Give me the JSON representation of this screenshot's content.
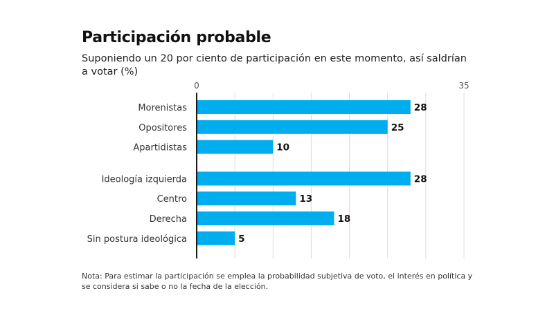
{
  "header": {
    "title": "Participación probable",
    "subtitle": "Suponiendo un 20 por ciento de participación en este momento, así saldrían a votar (%)"
  },
  "footer": {
    "note": "Nota: Para estimar la participación se emplea la probabilidad subjetiva de voto, el interés en política y se considera si sabe o no la fecha de la elección."
  },
  "chart_data": {
    "type": "bar",
    "orientation": "horizontal",
    "title": "Participación probable",
    "subtitle": "Suponiendo un 20 por ciento de participación en este momento, así saldrían a votar (%)",
    "xlabel": "",
    "ylabel": "",
    "xlim": [
      0,
      35
    ],
    "ticks": [
      0,
      35
    ],
    "gridlines_every": 5,
    "grid": true,
    "legend": "none",
    "bar_color": "#00aeef",
    "groups": [
      {
        "categories": [
          "Morenistas",
          "Opositores",
          "Apartidistas"
        ],
        "values": [
          28,
          25,
          10
        ]
      },
      {
        "categories": [
          "Ideología izquierda",
          "Centro",
          "Derecha",
          "Sin postura ideológica"
        ],
        "values": [
          28,
          13,
          18,
          5
        ]
      }
    ]
  }
}
